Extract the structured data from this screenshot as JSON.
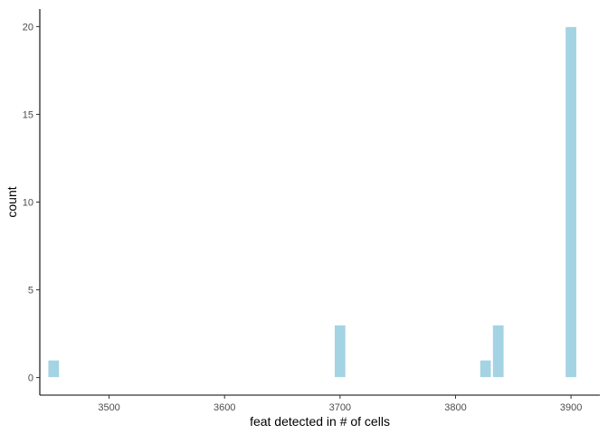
{
  "chart_data": {
    "type": "bar",
    "xlabel": "feat detected in # of cells",
    "ylabel": "count",
    "xlim": [
      3440,
      3925
    ],
    "ylim": [
      -1,
      21
    ],
    "xticks": [
      3500,
      3600,
      3700,
      3800,
      3900
    ],
    "yticks": [
      0,
      5,
      10,
      15,
      20
    ],
    "bin_width": 10,
    "bins": [
      {
        "x": 3452,
        "count": 1
      },
      {
        "x": 3700,
        "count": 3
      },
      {
        "x": 3826,
        "count": 1
      },
      {
        "x": 3837,
        "count": 3
      },
      {
        "x": 3900,
        "count": 20
      }
    ],
    "grid": false,
    "fill_color": "#a4d3e4",
    "edge_color": "#ffffff"
  }
}
